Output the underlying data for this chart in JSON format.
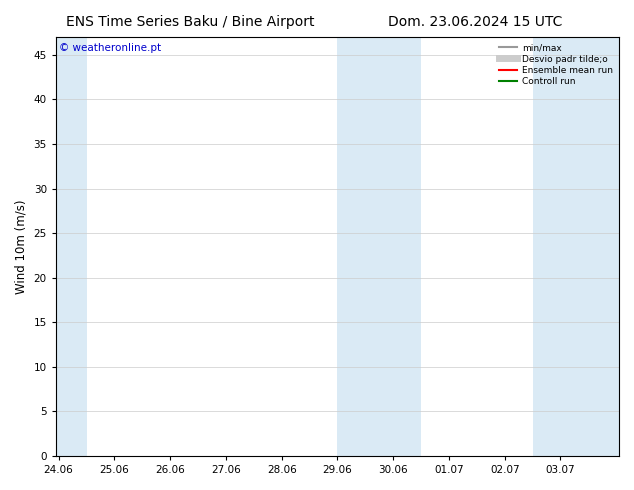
{
  "title_left": "ENS Time Series Baku / Bine Airport",
  "title_right": "Dom. 23.06.2024 15 UTC",
  "ylabel": "Wind 10m (m/s)",
  "watermark": "© weatheronline.pt",
  "ylim": [
    0,
    47
  ],
  "yticks": [
    0,
    5,
    10,
    15,
    20,
    25,
    30,
    35,
    40,
    45
  ],
  "xtick_labels": [
    "24.06",
    "25.06",
    "26.06",
    "27.06",
    "28.06",
    "29.06",
    "30.06",
    "01.07",
    "02.07",
    "03.07"
  ],
  "xtick_positions": [
    0,
    1,
    2,
    3,
    4,
    5,
    6,
    7,
    8,
    9
  ],
  "x_total_days": 10,
  "shaded_regions": [
    {
      "xmin": -0.05,
      "xmax": 0.5
    },
    {
      "xmin": 5.0,
      "xmax": 6.5
    },
    {
      "xmin": 8.5,
      "xmax": 10.05
    }
  ],
  "shaded_color": "#daeaf5",
  "legend_entries": [
    {
      "label": "min/max",
      "color": "#999999",
      "lw": 1.5,
      "style": "solid"
    },
    {
      "label": "Desvio padr tilde;o",
      "color": "#cccccc",
      "lw": 5,
      "style": "solid"
    },
    {
      "label": "Ensemble mean run",
      "color": "red",
      "lw": 1.5,
      "style": "solid"
    },
    {
      "label": "Controll run",
      "color": "green",
      "lw": 1.5,
      "style": "solid"
    }
  ],
  "bg_color": "#ffffff",
  "grid_color": "#cccccc",
  "title_fontsize": 10,
  "tick_fontsize": 7.5,
  "ylabel_fontsize": 8.5,
  "watermark_color": "#0000cc",
  "watermark_fontsize": 7.5
}
